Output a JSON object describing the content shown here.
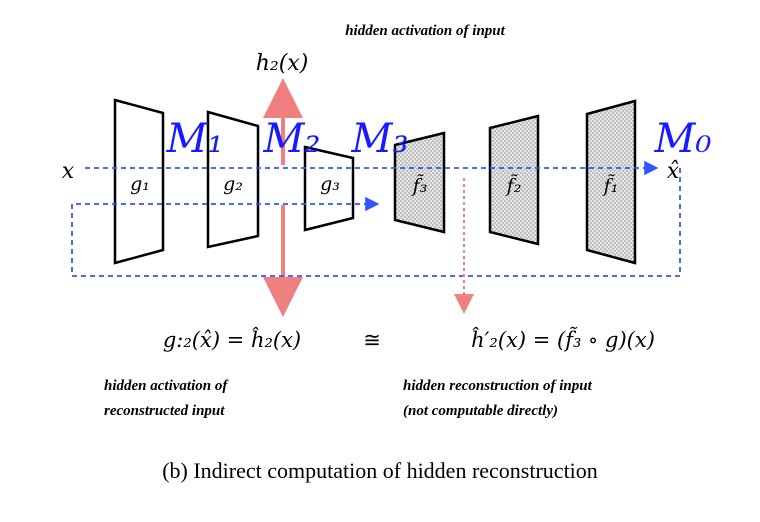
{
  "top_annotation": "hidden activation of input",
  "h2_label": "h₂(x)",
  "input_label": "x",
  "output_label": "x̂",
  "modules": [
    {
      "name": "M₁"
    },
    {
      "name": "M₂"
    },
    {
      "name": "M₃"
    },
    {
      "name": "M₀"
    }
  ],
  "encoders": [
    "g₁",
    "g₂",
    "g₃"
  ],
  "decoders": [
    "f̃₃",
    "f̃₂",
    "f̃₁"
  ],
  "equation_left": "g:₂(x̂) = ĥ₂(x)",
  "equation_approx": "≅",
  "equation_right": "ĥ′₂(x) = (f̃₃ ∘ g)(x)",
  "note_left_line1": "hidden activation of",
  "note_left_line2": "reconstructed input",
  "note_right_line1": "hidden reconstruction of input",
  "note_right_line2": "(not computable directly)",
  "caption": "(b) Indirect computation of hidden reconstruction",
  "colors": {
    "blue_modules": "#1a1aff",
    "dashed_flow": "#3355ff",
    "red_arrow": "#f08080",
    "outline": "#000000",
    "decoder_fill": "#d8d8d8"
  }
}
